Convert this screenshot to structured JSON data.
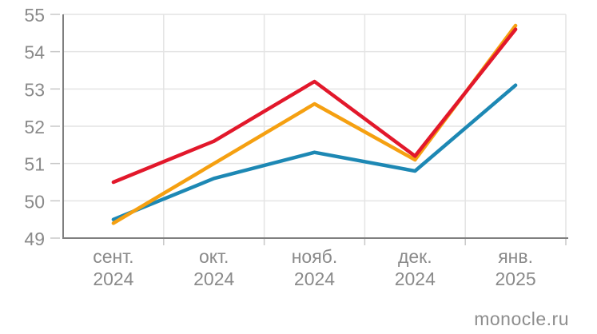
{
  "chart_data": {
    "type": "line",
    "title": "",
    "xlabel": "",
    "ylabel": "",
    "categories": [
      "сент.",
      "окт.",
      "нояб.",
      "дек.",
      "янв."
    ],
    "category_years": [
      "2024",
      "2024",
      "2024",
      "2024",
      "2025"
    ],
    "series": [
      {
        "name": "blue",
        "color": "#1d88b4",
        "values": [
          49.5,
          50.6,
          51.3,
          50.8,
          53.1
        ]
      },
      {
        "name": "orange",
        "color": "#f5a011",
        "values": [
          49.4,
          51.0,
          52.6,
          51.1,
          54.7
        ]
      },
      {
        "name": "red",
        "color": "#e2182b",
        "values": [
          50.5,
          51.6,
          53.2,
          51.2,
          54.6
        ]
      }
    ],
    "ylim": [
      49,
      55
    ],
    "yticks": [
      49,
      50,
      51,
      52,
      53,
      54,
      55
    ],
    "grid": true,
    "legend": false
  },
  "watermark": {
    "text": "monocle.ru"
  },
  "colors": {
    "grid": "#e4e4e4",
    "tick": "#c8c8c8",
    "axis": "#7f7f7f",
    "label": "#8a8a8a"
  }
}
